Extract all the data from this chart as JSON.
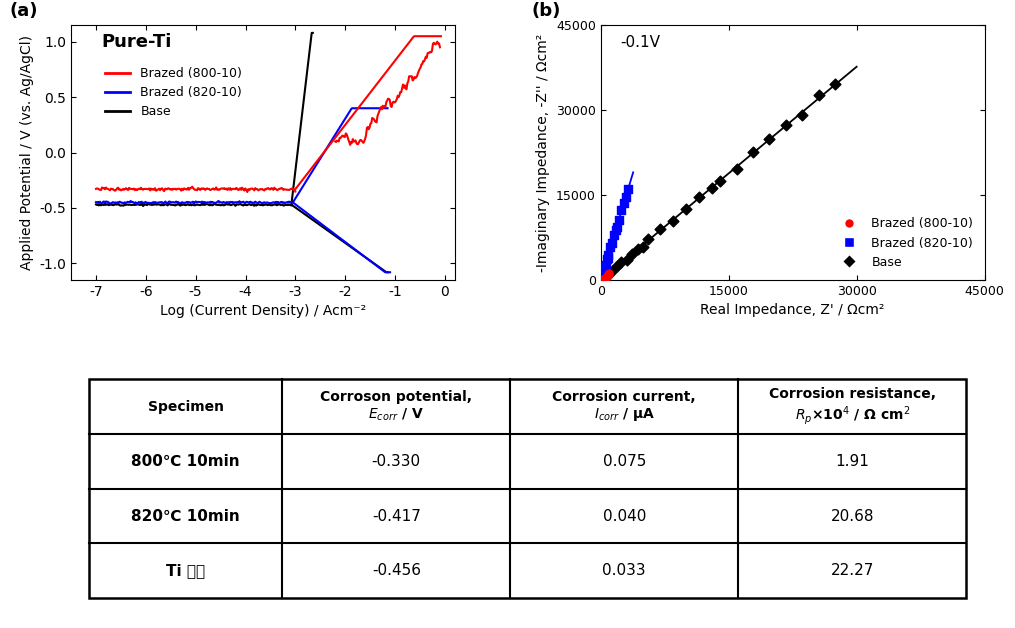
{
  "panel_a_label": "(a)",
  "panel_b_label": "(b)",
  "plot_title_a": "Pure-Ti",
  "xlabel_a": "Log (Current Density) / Acm⁻²",
  "ylabel_a": "Applied Potential / V (vs. Ag/AgCl)",
  "xlim_a": [
    -7.5,
    0.2
  ],
  "ylim_a": [
    -1.15,
    1.15
  ],
  "xticks_a": [
    -7,
    -6,
    -5,
    -4,
    -3,
    -2,
    -1,
    0
  ],
  "xticklabels_a": [
    "-7",
    "-6",
    "-5",
    "-4",
    "-3",
    "-2",
    "-1",
    "0"
  ],
  "yticks_a": [
    -1.0,
    -0.5,
    0.0,
    0.5,
    1.0
  ],
  "annotation_b": "-0.1V",
  "xlabel_b": "Real Impedance, Z' / Ωcm²",
  "ylabel_b": "-Imaginary Impedance, -Z'' / Ωcm²",
  "xlim_b": [
    0,
    45000
  ],
  "ylim_b": [
    0,
    45000
  ],
  "xticks_b": [
    0,
    15000,
    30000,
    45000
  ],
  "yticks_b": [
    0,
    15000,
    30000,
    45000
  ],
  "legend_a_lines": [
    "Brazed (800-10)",
    "Brazed (820-10)",
    "Base"
  ],
  "legend_a_colors": [
    "#ff0000",
    "#0000ff",
    "#000000"
  ],
  "legend_b_markers": [
    "Brazed (800-10)",
    "Brazed (820-10)",
    "Base"
  ],
  "legend_b_colors": [
    "#ff0000",
    "#0000ff",
    "#000000"
  ],
  "table_rows": [
    [
      "800℃ 10min",
      "-0.330",
      "0.075",
      "1.91"
    ],
    [
      "820℃ 10min",
      "-0.417",
      "0.040",
      "20.68"
    ],
    [
      "Ti 모재",
      "-0.456",
      "0.033",
      "22.27"
    ]
  ],
  "bg_color": "#ffffff",
  "line_width": 1.5
}
